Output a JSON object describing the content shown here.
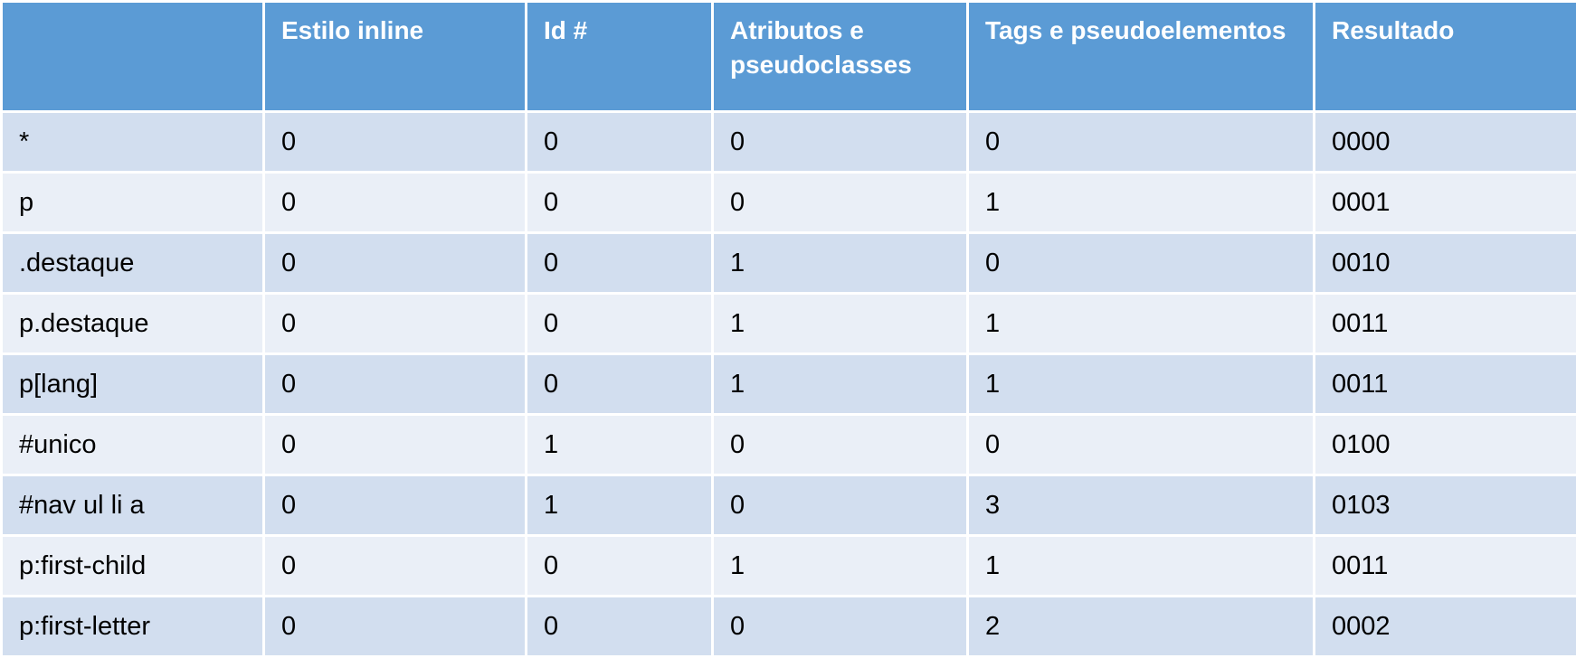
{
  "table": {
    "headers": [
      "",
      "Estilo inline",
      "Id #",
      "Atributos e pseudoclasses",
      "Tags e pseudoelementos",
      "Resultado"
    ],
    "rows": [
      [
        "*",
        "0",
        "0",
        "0",
        "0",
        "0000"
      ],
      [
        "p",
        "0",
        "0",
        "0",
        "1",
        "0001"
      ],
      [
        ".destaque",
        "0",
        "0",
        "1",
        "0",
        "0010"
      ],
      [
        "p.destaque",
        "0",
        "0",
        "1",
        "1",
        "0011"
      ],
      [
        "p[lang]",
        "0",
        "0",
        "1",
        "1",
        "0011"
      ],
      [
        "#unico",
        "0",
        "1",
        "0",
        "0",
        "0100"
      ],
      [
        "#nav ul li a",
        "0",
        "1",
        "0",
        "3",
        "0103"
      ],
      [
        "p:first-child",
        "0",
        "0",
        "1",
        "1",
        "0011"
      ],
      [
        "p:first-letter",
        "0",
        "0",
        "0",
        "2",
        "0002"
      ]
    ]
  },
  "colors": {
    "header_bg": "#5b9bd5",
    "header_text": "#ffffff",
    "row_odd_bg": "#d2deef",
    "row_even_bg": "#eaeff7",
    "cell_text": "#000000"
  }
}
